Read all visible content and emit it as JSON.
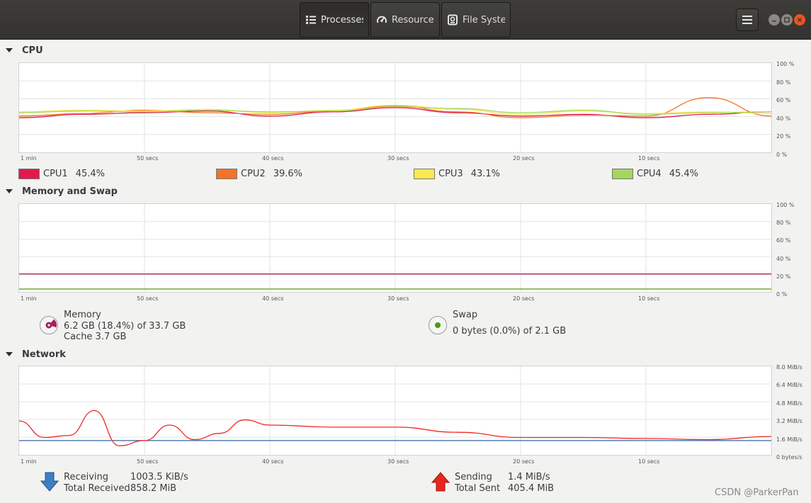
{
  "header": {
    "tabs": [
      {
        "label": "Processes",
        "icon": "list-icon",
        "active": true
      },
      {
        "label": "Resources",
        "icon": "gauge-icon",
        "active": false
      },
      {
        "label": "File Systems",
        "icon": "disk-icon",
        "active": false
      }
    ],
    "menu_icon": "hamburger-menu-icon",
    "window_controls": [
      "minimize-icon",
      "maximize-icon",
      "close-icon"
    ],
    "close_color": "#e95420"
  },
  "x_axis_labels": [
    "1 min",
    "50 secs",
    "40 secs",
    "30 secs",
    "20 secs",
    "10 secs"
  ],
  "cpu": {
    "title": "CPU",
    "y_labels": [
      "100 %",
      "80 %",
      "60 %",
      "40 %",
      "20 %",
      "0 %"
    ],
    "cores": [
      {
        "name": "CPU1",
        "value": "45.4%",
        "color": "#e01b4c"
      },
      {
        "name": "CPU2",
        "value": "39.6%",
        "color": "#f37329"
      },
      {
        "name": "CPU3",
        "value": "43.1%",
        "color": "#fce94f"
      },
      {
        "name": "CPU4",
        "value": "45.4%",
        "color": "#a5d65f"
      }
    ]
  },
  "memory": {
    "title": "Memory and Swap",
    "y_labels": [
      "100 %",
      "80 %",
      "60 %",
      "40 %",
      "20 %",
      "0 %"
    ],
    "mem_label": "Memory",
    "mem_value": "6.2 GB (18.4%) of 33.7 GB",
    "cache": "Cache 3.7 GB",
    "mem_color": "#a3225e",
    "swap_label": "Swap",
    "swap_value": "0 bytes (0.0%) of 2.1 GB",
    "swap_color": "#4e9a06",
    "mem_percent": 18.4,
    "swap_percent": 0.0
  },
  "network": {
    "title": "Network",
    "y_labels": [
      "8.0 MiB/s",
      "6.4 MiB/s",
      "4.8 MiB/s",
      "3.2 MiB/s",
      "1.6 MiB/s",
      "0 bytes/s"
    ],
    "receiving_label": "Receiving",
    "receiving_value": "1003.5 KiB/s",
    "total_received_label": "Total Received",
    "total_received_value": "858.2 MiB",
    "sending_label": "Sending",
    "sending_value": "1.4 MiB/s",
    "total_sent_label": "Total Sent",
    "total_sent_value": "405.4 MiB",
    "receive_color": "#3465a4",
    "send_color": "#ef2929"
  },
  "watermark": "CSDN @ParkerPan",
  "chart_data": [
    {
      "type": "line",
      "title": "CPU",
      "ylim": [
        0,
        100
      ],
      "x": [
        60,
        55,
        50,
        45,
        40,
        35,
        30,
        25,
        20,
        15,
        10,
        5,
        0
      ],
      "series": [
        {
          "name": "CPU1",
          "values": [
            38,
            42,
            44,
            46,
            40,
            45,
            50,
            44,
            40,
            42,
            38,
            42,
            45
          ]
        },
        {
          "name": "CPU2",
          "values": [
            40,
            43,
            47,
            44,
            42,
            46,
            52,
            45,
            38,
            41,
            40,
            62,
            40
          ]
        },
        {
          "name": "CPU3",
          "values": [
            45,
            47,
            46,
            48,
            44,
            47,
            53,
            48,
            42,
            46,
            43,
            45,
            43
          ]
        },
        {
          "name": "CPU4",
          "values": [
            44,
            46,
            45,
            47,
            45,
            46,
            51,
            49,
            44,
            47,
            42,
            44,
            45
          ]
        }
      ]
    },
    {
      "type": "line",
      "title": "Memory and Swap",
      "ylim": [
        0,
        100
      ],
      "x": [
        60,
        0
      ],
      "series": [
        {
          "name": "Memory",
          "values": [
            18.4,
            18.4
          ]
        },
        {
          "name": "Swap",
          "values": [
            0,
            0
          ]
        }
      ]
    },
    {
      "type": "line",
      "title": "Network",
      "ylim": [
        0,
        8
      ],
      "x": [
        60,
        58,
        56,
        54,
        52,
        50,
        48,
        46,
        44,
        42,
        40,
        35,
        30,
        25,
        20,
        15,
        10,
        5,
        0
      ],
      "series": [
        {
          "name": "Receiving",
          "values": [
            1.1,
            1.1,
            1.1,
            1.1,
            1.1,
            1.1,
            1.1,
            1.1,
            1.1,
            1.1,
            1.1,
            1.1,
            1.1,
            1.1,
            1.1,
            1.1,
            1.1,
            1.1,
            1.1
          ]
        },
        {
          "name": "Sending",
          "values": [
            3.0,
            1.4,
            1.6,
            4.0,
            0.6,
            1.1,
            2.6,
            1.2,
            1.8,
            3.1,
            2.6,
            2.4,
            2.4,
            1.9,
            1.4,
            1.4,
            1.3,
            1.2,
            1.5
          ]
        }
      ]
    }
  ]
}
